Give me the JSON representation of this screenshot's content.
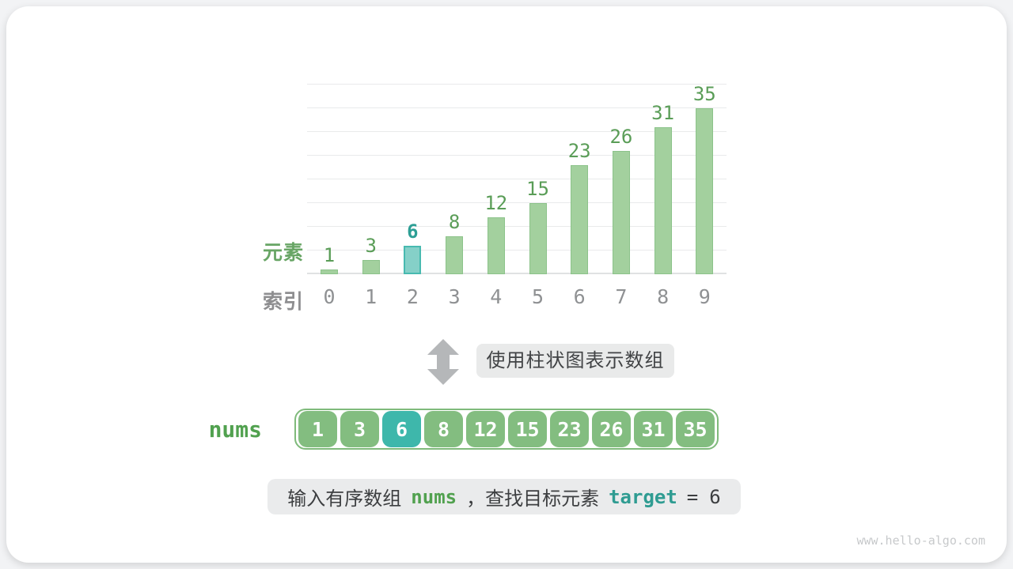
{
  "page": {
    "watermark": "www.hello-algo.com"
  },
  "chart_data": {
    "type": "bar",
    "categories": [
      "0",
      "1",
      "2",
      "3",
      "4",
      "5",
      "6",
      "7",
      "8",
      "9"
    ],
    "values": [
      1,
      3,
      6,
      8,
      12,
      15,
      23,
      26,
      31,
      35
    ],
    "highlight_index": 2,
    "title": "",
    "xlabel": "索引",
    "ylabel": "元素",
    "ylim": [
      0,
      40
    ],
    "gridline_step": 5,
    "grid": true,
    "legend": "none",
    "colors": {
      "bar_fill": "#a3d09e",
      "bar_border": "#8cc38a",
      "highlight_fill": "#85d0c8",
      "highlight_border": "#48bab0",
      "value_label": "#5a9d57",
      "highlight_value_label": "#2d9f95"
    }
  },
  "transform": {
    "arrow_icon": "up-down-arrow-icon",
    "label": "使用柱状图表示数组",
    "arrow_color": "#b5b7b9"
  },
  "array": {
    "name": "nums",
    "values": [
      "1",
      "3",
      "6",
      "8",
      "12",
      "15",
      "23",
      "26",
      "31",
      "35"
    ],
    "highlight_index": 2,
    "cell_color": "#83bd80",
    "highlight_cell_color": "#3eb7ab"
  },
  "caption": {
    "text1": "输入有序数组",
    "code1": "nums",
    "text2": "，查找目标元素",
    "code2": "target",
    "operator": "=",
    "value": "6"
  }
}
